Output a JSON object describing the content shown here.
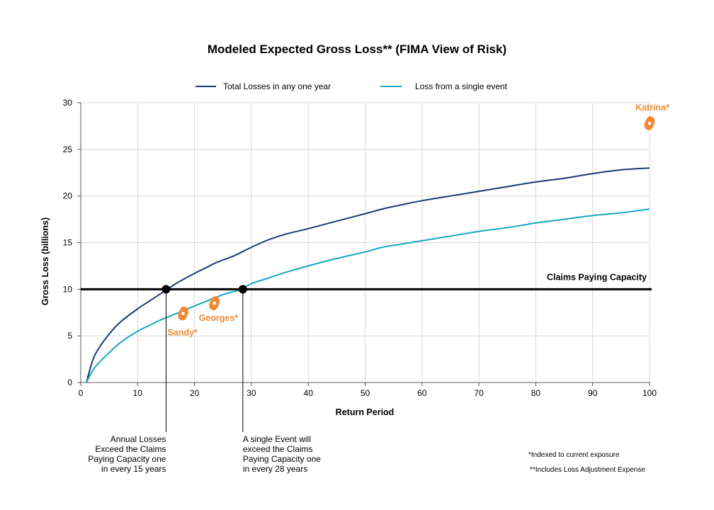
{
  "colors": {
    "total": "#1a3a72",
    "single": "#17a6c4",
    "capacity": "#000000",
    "storm": "#f08a34",
    "grid": "#d9d9d9",
    "axis": "#595959"
  },
  "chart_data": {
    "type": "line",
    "title": "Modeled Expected Gross Loss** (FIMA View of Risk)",
    "xlabel": "Return Period",
    "ylabel": "Gross  Loss  (billions)",
    "xlim": [
      0,
      100
    ],
    "ylim": [
      0,
      30
    ],
    "xticks": [
      "0",
      "10",
      "20",
      "30",
      "40",
      "50",
      "60",
      "70",
      "80",
      "90",
      "100"
    ],
    "yticks": [
      "0",
      "5",
      "10",
      "15",
      "20",
      "25",
      "30"
    ],
    "grid": "horizontal",
    "legend_position": "top",
    "series": [
      {
        "name": "Total Losses in any one year",
        "color_key": "total",
        "x": [
          1,
          2,
          3,
          5,
          7,
          10,
          12,
          15,
          17,
          20,
          22,
          24,
          27,
          30,
          33,
          36,
          40,
          45,
          50,
          53,
          56,
          60,
          65,
          70,
          75,
          80,
          85,
          90,
          95,
          100
        ],
        "y": [
          0,
          2.2,
          3.5,
          5.2,
          6.5,
          7.9,
          8.7,
          9.9,
          10.7,
          11.7,
          12.3,
          12.9,
          13.6,
          14.5,
          15.3,
          15.9,
          16.5,
          17.3,
          18.1,
          18.6,
          19.0,
          19.5,
          20.0,
          20.5,
          21.0,
          21.5,
          21.9,
          22.4,
          22.8,
          23.0
        ]
      },
      {
        "name": "Loss from a single event",
        "color_key": "single",
        "x": [
          1,
          2,
          3,
          5,
          7,
          10,
          12,
          14,
          16,
          18,
          20,
          22,
          24,
          26,
          28,
          30,
          33,
          36,
          40,
          45,
          50,
          53,
          56,
          60,
          65,
          70,
          75,
          80,
          85,
          90,
          95,
          100
        ],
        "y": [
          0,
          1.2,
          2.0,
          3.2,
          4.3,
          5.5,
          6.1,
          6.7,
          7.2,
          7.7,
          8.2,
          8.7,
          9.2,
          9.6,
          9.95,
          10.6,
          11.2,
          11.8,
          12.5,
          13.3,
          14.0,
          14.5,
          14.8,
          15.2,
          15.7,
          16.2,
          16.6,
          17.1,
          17.5,
          17.9,
          18.2,
          18.6
        ]
      }
    ],
    "reference_line": {
      "label": "Claims Paying Capacity",
      "y": 10,
      "color_key": "capacity"
    },
    "markers": [
      {
        "x": 15,
        "y": 10
      },
      {
        "x": 28.5,
        "y": 10
      }
    ],
    "storms": [
      {
        "label": "Sandy*",
        "x": 18,
        "y": 7.4
      },
      {
        "label": "Georges*",
        "x": 23.5,
        "y": 8.5
      },
      {
        "label": "Katrina*",
        "x": 100,
        "y": 27.8
      }
    ],
    "annotations": [
      {
        "lines": [
          "Annual Losses",
          "Exceed the Claims",
          "Paying Capacity one",
          "in every  15 years"
        ],
        "anchor_x": 15
      },
      {
        "lines": [
          "A single Event will",
          "exceed the Claims",
          "Paying Capacity one",
          "in every  28 years"
        ],
        "anchor_x": 28.5
      }
    ]
  },
  "footnotes": [
    "*Indexed to current exposure",
    "**Includes Loss Adjustment Expense"
  ]
}
